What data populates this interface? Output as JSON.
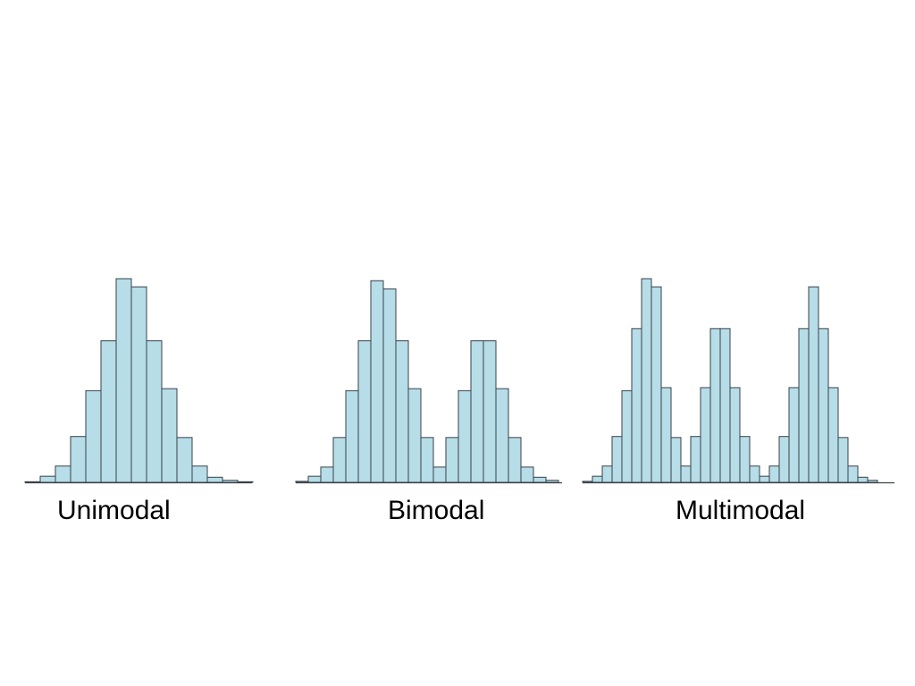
{
  "style": {
    "bar_fill": "#b6dde8",
    "bar_stroke": "#3a4148",
    "baseline": "#3a4148",
    "background": "#ffffff"
  },
  "chart_data": [
    {
      "type": "bar",
      "title": "Unimodal",
      "values": [
        0.3,
        3,
        8,
        22.5,
        45,
        69.5,
        100,
        96,
        69.5,
        46,
        22,
        8,
        2.5,
        1,
        0.3
      ],
      "ylim": [
        0,
        100
      ],
      "grid": false,
      "legend": "none"
    },
    {
      "type": "bar",
      "title": "Bimodal",
      "values": [
        0.5,
        3,
        7.5,
        22,
        45,
        69.5,
        99,
        95,
        69.5,
        46,
        22,
        7.5,
        22,
        45,
        69.5,
        69.5,
        46,
        22,
        7.5,
        2.5,
        1
      ],
      "ylim": [
        0,
        100
      ],
      "grid": false,
      "legend": "none"
    },
    {
      "type": "bar",
      "title": "Multimodal",
      "values": [
        0.5,
        3,
        8,
        22.5,
        45,
        75.5,
        100,
        96,
        46.5,
        22,
        8,
        22.5,
        46.5,
        75.5,
        75.5,
        46.5,
        22.5,
        8,
        3,
        8,
        22.5,
        46.5,
        75.5,
        96,
        75.5,
        46.5,
        22,
        8,
        2.5,
        1
      ],
      "ylim": [
        0,
        100
      ],
      "grid": false,
      "legend": "none"
    }
  ]
}
